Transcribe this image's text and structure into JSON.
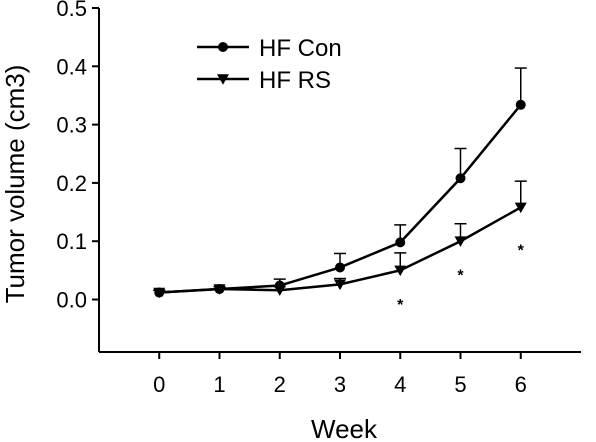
{
  "chart_data": {
    "type": "line",
    "xlabel": "Week",
    "ylabel": "Tumor volume (cm3)",
    "x": [
      0,
      1,
      2,
      3,
      4,
      5,
      6
    ],
    "xlim": [
      -1,
      7
    ],
    "ylim": [
      -0.09,
      0.5
    ],
    "yticks": [
      0.0,
      0.1,
      0.2,
      0.3,
      0.4,
      0.5
    ],
    "ytick_labels": [
      "0.0",
      "0.1",
      "0.2",
      "0.3",
      "0.4",
      "0.5"
    ],
    "xtick_labels": [
      "0",
      "1",
      "2",
      "3",
      "4",
      "5",
      "6"
    ],
    "grid": false,
    "legend_position": "top-left",
    "series": [
      {
        "name": "HF Con",
        "marker": "circle",
        "values": [
          0.012,
          0.018,
          0.024,
          0.055,
          0.098,
          0.208,
          0.334
        ],
        "error": [
          0.004,
          0.004,
          0.011,
          0.024,
          0.03,
          0.051,
          0.063
        ]
      },
      {
        "name": "HF RS",
        "marker": "triangle-down",
        "values": [
          0.012,
          0.018,
          0.016,
          0.026,
          0.05,
          0.1,
          0.158
        ],
        "error": [
          0.004,
          0.004,
          0.006,
          0.01,
          0.03,
          0.03,
          0.045
        ]
      }
    ],
    "annotations": [
      {
        "x": 4,
        "text": "*"
      },
      {
        "x": 5,
        "text": "*"
      },
      {
        "x": 6,
        "text": "*"
      }
    ]
  }
}
